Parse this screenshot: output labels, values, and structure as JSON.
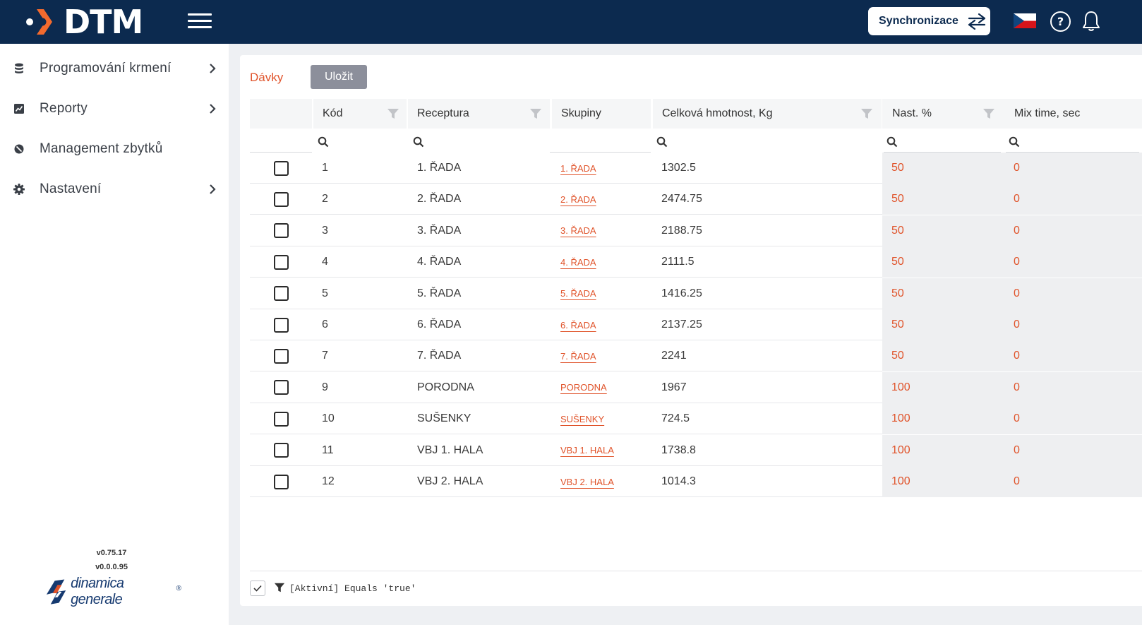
{
  "header": {
    "logo_text": "DTM",
    "sync_label": "Synchronizace"
  },
  "sidebar": {
    "items": [
      {
        "label": "Programování krmení",
        "icon": "database-icon",
        "has_children": true
      },
      {
        "label": "Reporty",
        "icon": "chart-icon",
        "has_children": true
      },
      {
        "label": "Management zbytků",
        "icon": "circle-slash-icon",
        "has_children": false
      },
      {
        "label": "Nastavení",
        "icon": "gear-icon",
        "has_children": true
      }
    ],
    "version_1": "v0.75.17",
    "version_2": "v0.0.0.95",
    "brand": "dinamica generale",
    "brand_mark": "®"
  },
  "main": {
    "title": "Dávky",
    "save_label": "Uložit"
  },
  "table": {
    "columns": [
      "Kód",
      "Receptura",
      "Skupiny",
      "Celková hmotnost, Kg",
      "Nast. %",
      "Mix time, sec"
    ],
    "rows": [
      {
        "code": "1",
        "recipe": "1. ŘADA",
        "group": "1. ŘADA",
        "weight": "1302.5",
        "pct": "50",
        "mix": "0"
      },
      {
        "code": "2",
        "recipe": "2. ŘADA",
        "group": "2. ŘADA",
        "weight": "2474.75",
        "pct": "50",
        "mix": "0"
      },
      {
        "code": "3",
        "recipe": "3. ŘADA",
        "group": "3. ŘADA",
        "weight": "2188.75",
        "pct": "50",
        "mix": "0"
      },
      {
        "code": "4",
        "recipe": "4. ŘADA",
        "group": "4. ŘADA",
        "weight": "2111.5",
        "pct": "50",
        "mix": "0"
      },
      {
        "code": "5",
        "recipe": "5. ŘADA",
        "group": "5. ŘADA",
        "weight": "1416.25",
        "pct": "50",
        "mix": "0"
      },
      {
        "code": "6",
        "recipe": "6. ŘADA",
        "group": "6. ŘADA",
        "weight": "2137.25",
        "pct": "50",
        "mix": "0"
      },
      {
        "code": "7",
        "recipe": "7. ŘADA",
        "group": "7. ŘADA",
        "weight": "2241",
        "pct": "50",
        "mix": "0"
      },
      {
        "code": "9",
        "recipe": "PORODNA",
        "group": "PORODNA",
        "weight": "1967",
        "pct": "100",
        "mix": "0"
      },
      {
        "code": "10",
        "recipe": "SUŠENKY",
        "group": "SUŠENKY",
        "weight": "724.5",
        "pct": "100",
        "mix": "0"
      },
      {
        "code": "11",
        "recipe": "VBJ 1. HALA",
        "group": "VBJ 1. HALA",
        "weight": "1738.8",
        "pct": "100",
        "mix": "0"
      },
      {
        "code": "12",
        "recipe": "VBJ 2. HALA",
        "group": "VBJ 2. HALA",
        "weight": "1014.3",
        "pct": "100",
        "mix": "0"
      }
    ]
  },
  "filter": {
    "text": "[Aktivní] Equals 'true'"
  },
  "colors": {
    "header_bg": "#0c2a4f",
    "accent": "#e0532a",
    "save_button": "#8c8f9b"
  }
}
